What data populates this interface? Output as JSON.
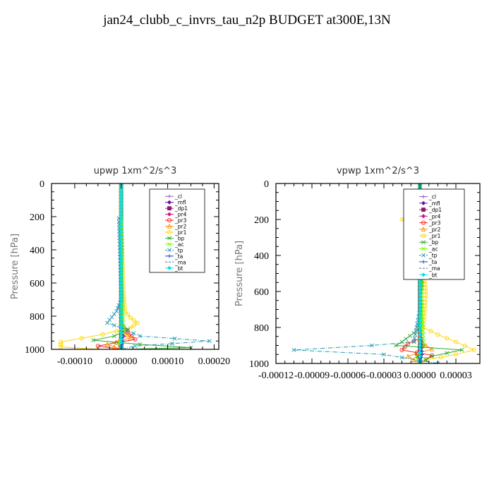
{
  "page": {
    "title": "jan24_clubb_c_invrs_tau_n2p  BUDGET at300E,13N"
  },
  "chart_data": [
    {
      "type": "line",
      "title": "upwp   1xm^2/s^3",
      "ylabel": "Pressure [hPa]",
      "xlabel": "",
      "xlim": [
        -0.00015,
        0.00021
      ],
      "ylim": [
        0,
        1000
      ],
      "yreverse": true,
      "xticks": [
        -0.0001,
        0.0,
        0.0001,
        0.0002
      ],
      "xtick_labels": [
        "-0.00010",
        "0.00000",
        "0.00010",
        "0.00020"
      ],
      "yticks": [
        0,
        200,
        400,
        600,
        800,
        1000
      ],
      "ytick_labels": [
        "0",
        "200",
        "400",
        "600",
        "800",
        "1000"
      ],
      "legend_position": "upper-right",
      "grid": false,
      "series": [
        {
          "name": "_cl",
          "color": "#9b59b6",
          "style": "solid",
          "marker": "plus",
          "points": [
            [
              0,
              0
            ],
            [
              0,
              200
            ],
            [
              0,
              400
            ],
            [
              0,
              600
            ],
            [
              0,
              800
            ],
            [
              0,
              1000
            ]
          ]
        },
        {
          "name": "_mfl",
          "color": "#6a0dad",
          "style": "solid",
          "marker": "diamond",
          "points": [
            [
              0,
              0
            ],
            [
              0,
              200
            ],
            [
              0,
              400
            ],
            [
              0,
              600
            ],
            [
              0,
              800
            ],
            [
              0,
              1000
            ]
          ]
        },
        {
          "name": "_dp1",
          "color": "#8b1a6b",
          "style": "solid",
          "marker": "square",
          "points": [
            [
              0,
              0
            ],
            [
              0,
              200
            ],
            [
              0,
              400
            ],
            [
              0,
              600
            ],
            [
              0,
              800
            ],
            [
              0,
              900
            ],
            [
              0,
              950
            ],
            [
              0,
              1000
            ]
          ]
        },
        {
          "name": "_pr4",
          "color": "#c71585",
          "style": "solid",
          "marker": "diamond",
          "points": [
            [
              0,
              0
            ],
            [
              0,
              800
            ],
            [
              5e-06,
              920
            ],
            [
              -5e-06,
              960
            ],
            [
              0,
              1000
            ]
          ]
        },
        {
          "name": "_pr3",
          "color": "#ff2222",
          "style": "solid",
          "marker": "circle",
          "points": [
            [
              0,
              0
            ],
            [
              0,
              850
            ],
            [
              1.5e-05,
              900
            ],
            [
              3e-05,
              940
            ],
            [
              -5e-05,
              980
            ],
            [
              0,
              1000
            ]
          ]
        },
        {
          "name": "_pr2",
          "color": "#ff8c00",
          "style": "solid",
          "marker": "triangle",
          "points": [
            [
              0,
              0
            ],
            [
              0,
              880
            ],
            [
              2e-05,
              930
            ],
            [
              -3e-05,
              970
            ],
            [
              0,
              1000
            ]
          ]
        },
        {
          "name": "_pr1",
          "color": "#ffd700",
          "style": "solid",
          "marker": "circle",
          "points": [
            [
              0,
              0
            ],
            [
              0,
              200
            ],
            [
              5e-06,
              650
            ],
            [
              8e-06,
              770
            ],
            [
              2e-05,
              810
            ],
            [
              3.5e-05,
              840
            ],
            [
              2e-05,
              870
            ],
            [
              -4e-05,
              910
            ],
            [
              -0.00013,
              955
            ],
            [
              -0.00013,
              985
            ],
            [
              -5e-05,
              1000
            ]
          ]
        },
        {
          "name": "_bp",
          "color": "#2eaa2e",
          "style": "solid",
          "marker": "x",
          "points": [
            [
              0,
              0
            ],
            [
              0,
              860
            ],
            [
              1.5e-05,
              880
            ],
            [
              -1.5e-05,
              920
            ],
            [
              -6e-05,
              945
            ],
            [
              4e-05,
              970
            ],
            [
              0.00015,
              990
            ],
            [
              0,
              1000
            ]
          ]
        },
        {
          "name": "_ac",
          "color": "#7cfc00",
          "style": "solid",
          "marker": "x",
          "points": [
            [
              0,
              0
            ],
            [
              0,
              400
            ],
            [
              5e-06,
              900
            ],
            [
              -5e-06,
              960
            ],
            [
              0,
              1000
            ]
          ]
        },
        {
          "name": "_tp",
          "color": "#1f9bb4",
          "style": "dashdot",
          "marker": "x",
          "points": [
            [
              0,
              0
            ],
            [
              0,
              200
            ],
            [
              -5e-06,
              210
            ],
            [
              0,
              700
            ],
            [
              -1e-05,
              770
            ],
            [
              -3e-05,
              840
            ],
            [
              0,
              870
            ],
            [
              4e-05,
              920
            ],
            [
              0.00019,
              950
            ],
            [
              3e-05,
              980
            ],
            [
              0,
              1000
            ]
          ]
        },
        {
          "name": "_ta",
          "color": "#1b3fcf",
          "style": "solid",
          "marker": "plus",
          "points": [
            [
              0,
              0
            ],
            [
              0,
              800
            ],
            [
              3e-06,
              950
            ],
            [
              0,
              1000
            ]
          ]
        },
        {
          "name": "_ma",
          "color": "#666666",
          "style": "dash",
          "marker": "none",
          "points": [
            [
              0,
              0
            ],
            [
              0,
              500
            ],
            [
              0,
              1000
            ]
          ]
        },
        {
          "name": "_bt",
          "color": "#00e5e5",
          "style": "solid",
          "marker": "diamond",
          "points": [
            [
              0,
              0
            ],
            [
              0,
              500
            ],
            [
              0,
              1000
            ]
          ]
        }
      ]
    },
    {
      "type": "line",
      "title": "vpwp   1xm^2/s^3",
      "ylabel": "Pressure [hPa]",
      "xlabel": "",
      "xlim": [
        -0.00012,
        5e-05
      ],
      "ylim": [
        0,
        1000
      ],
      "yreverse": true,
      "xticks": [
        -0.00012,
        -9e-05,
        -6e-05,
        -3e-05,
        0.0,
        3e-05
      ],
      "xtick_labels": [
        "-0.00012",
        "-0.00009",
        "-0.00006",
        "-0.00003",
        "0.00000",
        "0.00003"
      ],
      "yticks": [
        0,
        200,
        400,
        600,
        800,
        1000
      ],
      "ytick_labels": [
        "0",
        "200",
        "400",
        "600",
        "800",
        "1000"
      ],
      "legend_position": "upper-right",
      "grid": false,
      "series": [
        {
          "name": "_cl",
          "color": "#9b59b6",
          "style": "solid",
          "marker": "plus",
          "points": [
            [
              0,
              0
            ],
            [
              0,
              200
            ],
            [
              0,
              400
            ],
            [
              0,
              600
            ],
            [
              0,
              800
            ],
            [
              0,
              1000
            ]
          ]
        },
        {
          "name": "_mfl",
          "color": "#6a0dad",
          "style": "solid",
          "marker": "diamond",
          "points": [
            [
              0,
              0
            ],
            [
              0,
              200
            ],
            [
              0,
              400
            ],
            [
              0,
              600
            ],
            [
              0,
              800
            ],
            [
              0,
              1000
            ]
          ]
        },
        {
          "name": "_dp1",
          "color": "#8b1a6b",
          "style": "solid",
          "marker": "square",
          "points": [
            [
              0,
              0
            ],
            [
              0,
              200
            ],
            [
              0,
              400
            ],
            [
              0,
              600
            ],
            [
              0,
              800
            ],
            [
              0,
              900
            ],
            [
              0,
              950
            ],
            [
              0,
              1000
            ]
          ]
        },
        {
          "name": "_pr4",
          "color": "#c71585",
          "style": "solid",
          "marker": "diamond",
          "points": [
            [
              0,
              0
            ],
            [
              0,
              850
            ],
            [
              3e-06,
              900
            ],
            [
              -3e-06,
              950
            ],
            [
              0,
              1000
            ]
          ]
        },
        {
          "name": "_pr3",
          "color": "#ff2222",
          "style": "solid",
          "marker": "circle",
          "points": [
            [
              0,
              0
            ],
            [
              0,
              860
            ],
            [
              -1e-05,
              890
            ],
            [
              -1.5e-05,
              925
            ],
            [
              1e-05,
              955
            ],
            [
              0,
              1000
            ]
          ]
        },
        {
          "name": "_pr2",
          "color": "#ff8c00",
          "style": "solid",
          "marker": "triangle",
          "points": [
            [
              0,
              0
            ],
            [
              0,
              880
            ],
            [
              1e-05,
              920
            ],
            [
              -1e-05,
              960
            ],
            [
              0,
              1000
            ]
          ]
        },
        {
          "name": "_pr1",
          "color": "#ffd700",
          "style": "solid",
          "marker": "circle",
          "points": [
            [
              0,
              0
            ],
            [
              0,
              150
            ],
            [
              -1e-05,
              180
            ],
            [
              -1.5e-05,
              200
            ],
            [
              -5e-06,
              230
            ],
            [
              0,
              300
            ],
            [
              5e-06,
              600
            ],
            [
              3e-06,
              800
            ],
            [
              1.5e-05,
              840
            ],
            [
              3e-05,
              880
            ],
            [
              4.5e-05,
              925
            ],
            [
              3e-05,
              950
            ],
            [
              5e-06,
              980
            ],
            [
              0,
              1000
            ]
          ]
        },
        {
          "name": "_bp",
          "color": "#2eaa2e",
          "style": "solid",
          "marker": "x",
          "points": [
            [
              0,
              0
            ],
            [
              0,
              170
            ],
            [
              5e-06,
              200
            ],
            [
              -3e-06,
              370
            ],
            [
              3e-06,
              400
            ],
            [
              0,
              800
            ],
            [
              -5e-06,
              830
            ],
            [
              -1.5e-05,
              880
            ],
            [
              -2e-05,
              900
            ],
            [
              3.5e-05,
              925
            ],
            [
              1e-05,
              960
            ],
            [
              0,
              1000
            ]
          ]
        },
        {
          "name": "_ac",
          "color": "#7cfc00",
          "style": "solid",
          "marker": "x",
          "points": [
            [
              0,
              0
            ],
            [
              0,
              400
            ],
            [
              3e-06,
              900
            ],
            [
              -3e-06,
              960
            ],
            [
              0,
              1000
            ]
          ]
        },
        {
          "name": "_tp",
          "color": "#1f9bb4",
          "style": "dashdot",
          "marker": "x",
          "points": [
            [
              0,
              0
            ],
            [
              0,
              700
            ],
            [
              -5e-06,
              880
            ],
            [
              -4e-05,
              900
            ],
            [
              -0.000105,
              925
            ],
            [
              -3e-05,
              950
            ],
            [
              1.5e-05,
              1000
            ]
          ]
        },
        {
          "name": "_ta",
          "color": "#1b3fcf",
          "style": "solid",
          "marker": "plus",
          "points": [
            [
              0,
              0
            ],
            [
              0,
              800
            ],
            [
              2e-06,
              950
            ],
            [
              0,
              1000
            ]
          ]
        },
        {
          "name": "_ma",
          "color": "#666666",
          "style": "dash",
          "marker": "none",
          "points": [
            [
              0,
              0
            ],
            [
              0,
              500
            ],
            [
              0,
              1000
            ]
          ]
        },
        {
          "name": "_bt",
          "color": "#00e5e5",
          "style": "solid",
          "marker": "diamond",
          "points": [
            [
              0,
              0
            ],
            [
              0,
              500
            ],
            [
              0,
              1000
            ]
          ]
        }
      ]
    }
  ]
}
